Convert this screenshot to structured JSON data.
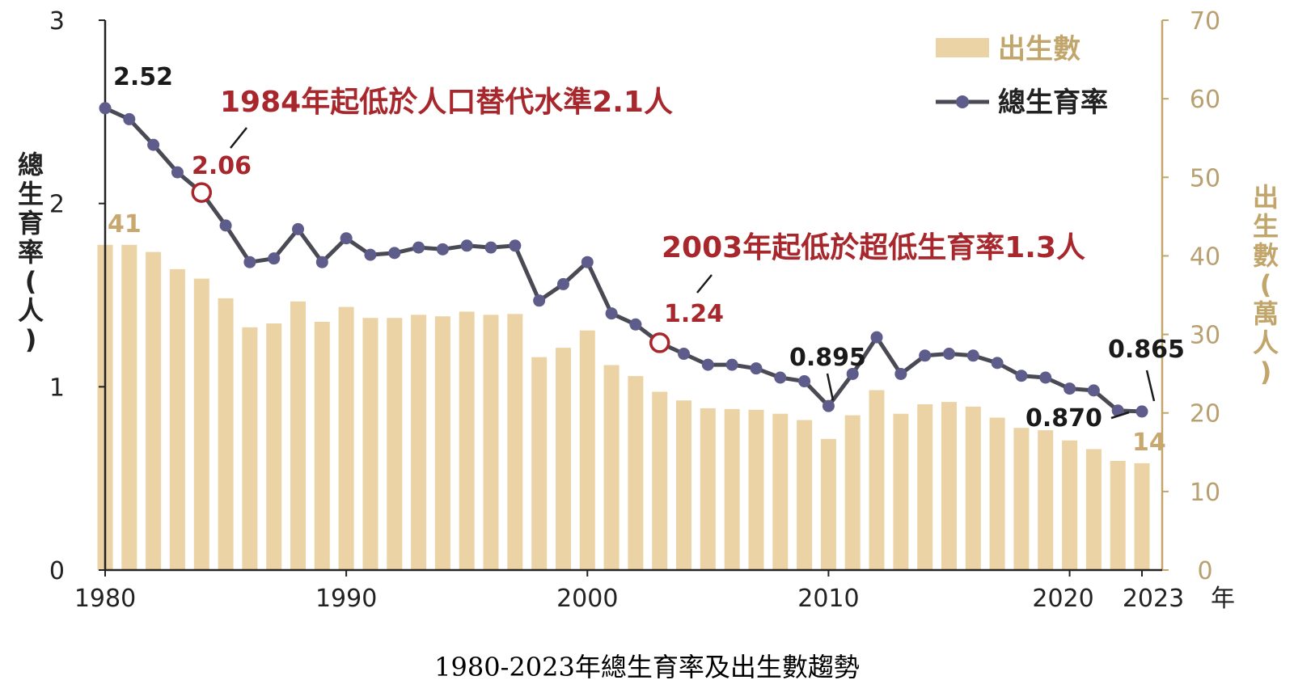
{
  "caption": "1980-2023年總生育率及出生數趨勢",
  "colors": {
    "bar": "#ecd3a6",
    "line": "#4a4a55",
    "marker": "#5e5c8a",
    "highlight": "#a8272c",
    "right_axis": "#c2a56a"
  },
  "chart_data": {
    "type": "bar",
    "x": [
      1980,
      1981,
      1982,
      1983,
      1984,
      1985,
      1986,
      1987,
      1988,
      1989,
      1990,
      1991,
      1992,
      1993,
      1994,
      1995,
      1996,
      1997,
      1998,
      1999,
      2000,
      2001,
      2002,
      2003,
      2004,
      2005,
      2006,
      2007,
      2008,
      2009,
      2010,
      2011,
      2012,
      2013,
      2014,
      2015,
      2016,
      2017,
      2018,
      2019,
      2020,
      2021,
      2022,
      2023
    ],
    "series": [
      {
        "name": "出生數",
        "type": "bar",
        "axis": "right",
        "values": [
          41.4,
          41.4,
          40.5,
          38.3,
          37.1,
          34.6,
          30.9,
          31.4,
          34.2,
          31.6,
          33.5,
          32.1,
          32.1,
          32.5,
          32.3,
          32.9,
          32.5,
          32.6,
          27.1,
          28.3,
          30.5,
          26.1,
          24.7,
          22.7,
          21.6,
          20.6,
          20.5,
          20.4,
          19.9,
          19.1,
          16.7,
          19.7,
          22.9,
          19.9,
          21.1,
          21.4,
          20.8,
          19.4,
          18.1,
          17.8,
          16.5,
          15.4,
          13.9,
          13.6
        ]
      },
      {
        "name": "總生育率",
        "type": "line",
        "axis": "left",
        "values": [
          2.52,
          2.46,
          2.32,
          2.17,
          2.06,
          1.88,
          1.68,
          1.7,
          1.86,
          1.68,
          1.81,
          1.72,
          1.73,
          1.76,
          1.75,
          1.77,
          1.76,
          1.77,
          1.47,
          1.56,
          1.68,
          1.4,
          1.34,
          1.24,
          1.18,
          1.12,
          1.12,
          1.1,
          1.05,
          1.03,
          0.895,
          1.07,
          1.27,
          1.07,
          1.17,
          1.18,
          1.17,
          1.13,
          1.06,
          1.05,
          0.99,
          0.98,
          0.87,
          0.865
        ]
      }
    ],
    "left_axis": {
      "label": "總生育率(人)",
      "ylim": [
        0,
        3
      ],
      "ticks": [
        0,
        1,
        2,
        3
      ]
    },
    "right_axis": {
      "label": "出生數(萬人)",
      "ylim": [
        0,
        70
      ],
      "ticks": [
        0,
        10,
        20,
        30,
        40,
        50,
        60,
        70
      ]
    },
    "x_axis": {
      "label": "年",
      "ticks": [
        "1980",
        "1990",
        "2000",
        "2010",
        "2020",
        "2023"
      ]
    },
    "legend": {
      "position": "top-right",
      "entries": [
        "出生數",
        "總生育率"
      ]
    },
    "annotations": {
      "a1984": "1984年起低於人口替代水準2.1人",
      "a2003": "2003年起低於超低生育率1.3人"
    },
    "value_labels": {
      "r1980": "2.52",
      "r1984": "2.06",
      "r2003": "1.24",
      "r2010": "0.895",
      "r2022": "0.870",
      "r2023": "0.865",
      "b1980": "41",
      "b2023": "14"
    },
    "grid": false
  }
}
